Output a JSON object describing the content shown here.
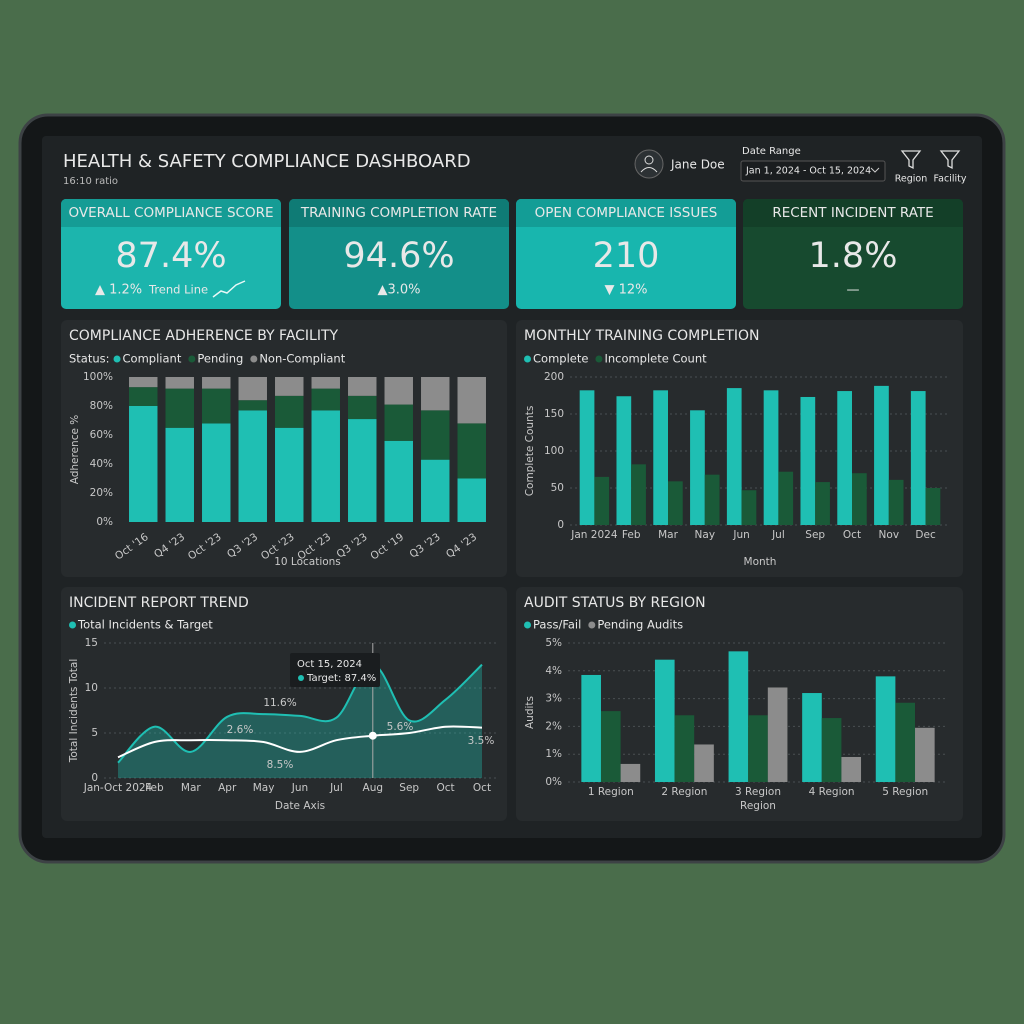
{
  "header": {
    "title": "HEALTH & SAFETY COMPLIANCE DASHBOARD",
    "subtitle": "16:10 ratio",
    "user": "Jane Doe",
    "date_range_label": "Date Range",
    "date_range": "Jan 1, 2024 - Oct 15, 2024",
    "filters": [
      "Region",
      "Facility"
    ]
  },
  "kpis": [
    {
      "title": "OVERALL COMPLIANCE SCORE",
      "value": "87.4%",
      "change": "▲ 1.2%",
      "note": "Trend Line"
    },
    {
      "title": "TRAINING COMPLETION RATE",
      "value": "94.6%",
      "change": "▲3.0%"
    },
    {
      "title": "OPEN COMPLIANCE ISSUES",
      "value": "210",
      "change": "▼ 12%"
    },
    {
      "title": "RECENT INCIDENT RATE",
      "value": "1.8%",
      "change": "—"
    }
  ],
  "chart_data": [
    {
      "type": "bar",
      "stacked": true,
      "title": "COMPLIANCE ADHERENCE BY FACILITY",
      "legend_title": "Status:",
      "categories": [
        "Oct '16",
        "Q4 '23",
        "Oct '23",
        "Q3 '23",
        "Oct '23",
        "Oct '23",
        "Q3 '23",
        "Oct '19",
        "Q3 '23",
        "Q4 '23"
      ],
      "series": [
        {
          "name": "Compliant",
          "color": "#1fbfb3",
          "values": [
            80,
            65,
            68,
            77,
            65,
            77,
            71,
            56,
            43,
            30
          ]
        },
        {
          "name": "Pending",
          "color": "#1a5a38",
          "values": [
            13,
            27,
            24,
            7,
            22,
            15,
            16,
            25,
            34,
            38
          ]
        },
        {
          "name": "Non-Compliant",
          "color": "#8c8c8c",
          "values": [
            7,
            8,
            8,
            16,
            13,
            8,
            13,
            19,
            23,
            32
          ]
        }
      ],
      "ylim": [
        0,
        100
      ],
      "yticks": [
        {
          "value": 0,
          "label": "0%"
        },
        {
          "value": 20,
          "label": "20%"
        },
        {
          "value": 40,
          "label": "40%"
        },
        {
          "value": 60,
          "label": "60%"
        },
        {
          "value": 80,
          "label": "80%"
        },
        {
          "value": 100,
          "label": "100%"
        }
      ],
      "ylabel": "Adherence %",
      "xlabel": "10 Locations",
      "grid": false
    },
    {
      "type": "bar",
      "title": "MONTHLY TRAINING COMPLETION",
      "categories": [
        "Jan 2024",
        "Feb",
        "Mar",
        "Nay",
        "Jun",
        "Jul",
        "Sep",
        "Oct",
        "Nov",
        "Dec"
      ],
      "series": [
        {
          "name": "Complete",
          "color": "#1fbfb3",
          "values": [
            182,
            174,
            182,
            155,
            185,
            182,
            173,
            181,
            188,
            181
          ]
        },
        {
          "name": "Incomplete Count",
          "color": "#1a5a38",
          "values": [
            65,
            82,
            59,
            68,
            47,
            72,
            58,
            70,
            61,
            50
          ]
        }
      ],
      "ylim": [
        0,
        200
      ],
      "yticks": [
        0,
        50,
        100,
        150,
        200
      ],
      "ylabel": "Complete Counts",
      "xlabel": "Month",
      "grid": true
    },
    {
      "type": "line",
      "title": "INCIDENT REPORT TREND",
      "categories": [
        "Jan-Oct 2024",
        "Feb",
        "Mar",
        "Apr",
        "May",
        "Jun",
        "Jul",
        "Aug",
        "Sep",
        "Oct",
        "Oct"
      ],
      "series": [
        {
          "name": "Total Incidents & Target",
          "color": "#1fbfb3",
          "fill": true,
          "values": [
            1.7,
            5.7,
            2.9,
            6.8,
            7.1,
            6.9,
            6.7,
            12.6,
            6.4,
            8.7,
            12.6
          ]
        },
        {
          "color": "#ffffff",
          "values": [
            2.3,
            4,
            4.2,
            4.2,
            4,
            2.9,
            4.2,
            4.7,
            5,
            5.7,
            5.6
          ]
        }
      ],
      "ylim": [
        0,
        15
      ],
      "yticks": [
        0,
        5,
        10,
        15
      ],
      "ylabel": "Total Incidents Total",
      "xlabel": "Date Axis",
      "grid": true,
      "annotations": [
        "11.6%",
        "2.6%",
        "8.5%",
        "5.6%",
        "3.5%"
      ],
      "tooltip": {
        "title": "Oct 15, 2024",
        "text": "Target: 87.4%"
      }
    },
    {
      "type": "bar",
      "title": "AUDIT STATUS BY REGION",
      "categories": [
        "1 Region",
        "2 Region",
        "3 Region",
        "4 Region",
        "5 Region"
      ],
      "series": [
        {
          "name": "Pass/Fail",
          "color": "#1fbfb3",
          "values": [
            3.85,
            4.4,
            4.7,
            3.2,
            3.8
          ]
        },
        {
          "color": "#1a5a38",
          "values": [
            2.55,
            2.4,
            2.4,
            2.3,
            2.85
          ]
        },
        {
          "name": "Pending Audits",
          "color": "#8c8c8c",
          "values": [
            0.65,
            1.35,
            3.4,
            0.9,
            1.95
          ]
        }
      ],
      "ylim": [
        0,
        5
      ],
      "yticks": [
        {
          "value": 0,
          "label": "0%"
        },
        {
          "value": 1,
          "label": "1%"
        },
        {
          "value": 2,
          "label": "2%"
        },
        {
          "value": 3,
          "label": "3%"
        },
        {
          "value": 4,
          "label": "4%"
        },
        {
          "value": 5,
          "label": "5%"
        }
      ],
      "ylabel": "Audits",
      "xlabel": "Region",
      "grid": true
    }
  ]
}
